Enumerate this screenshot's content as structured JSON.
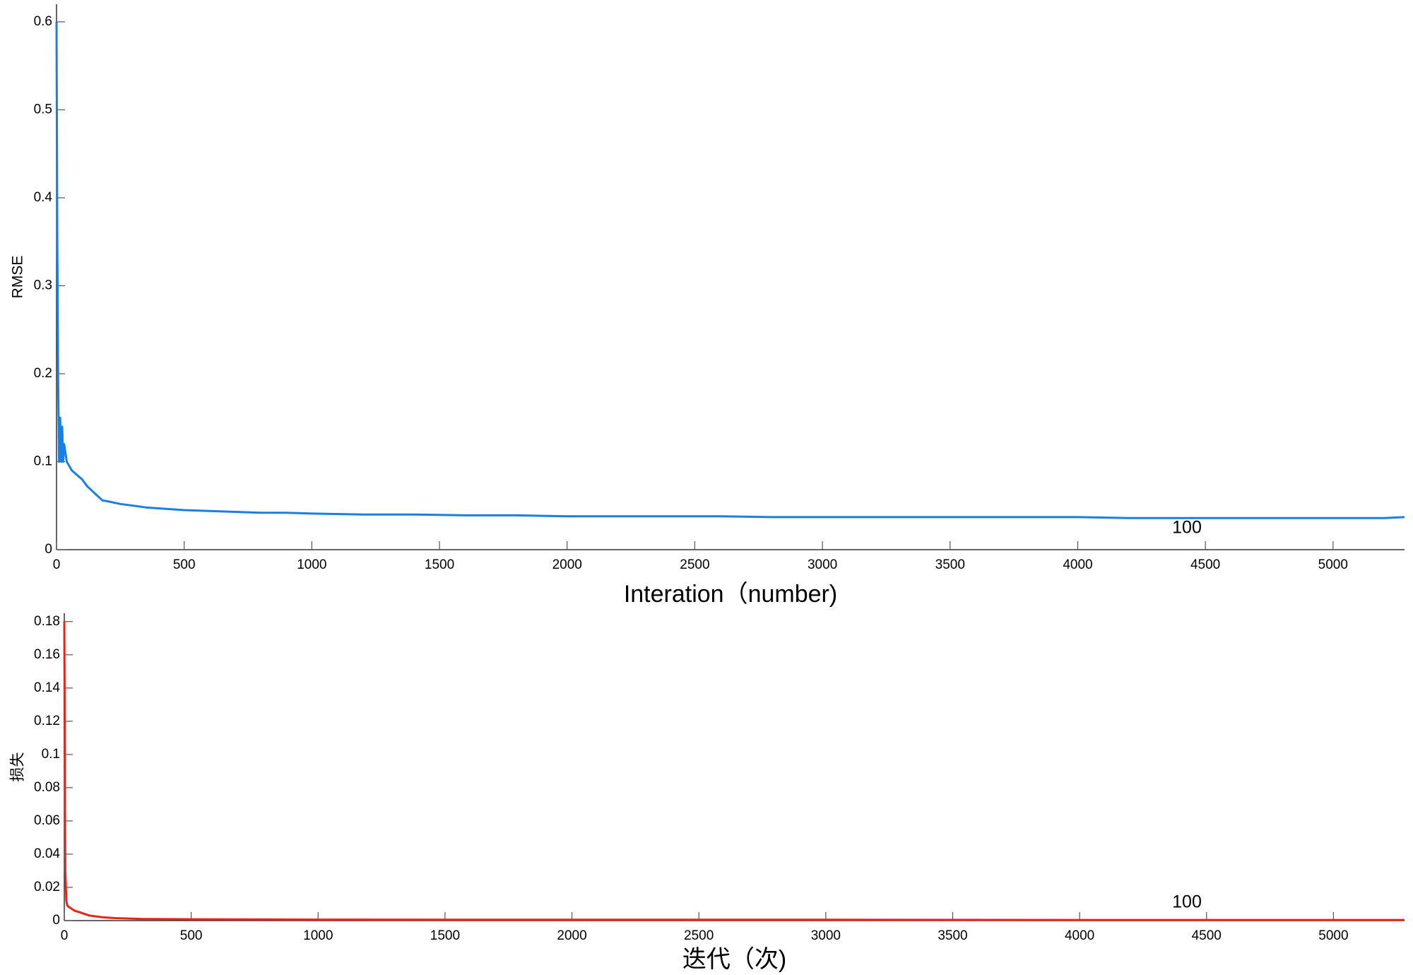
{
  "chart_data": [
    {
      "type": "line",
      "x_label": "Interation（number)",
      "y_label": "RMSE",
      "annotation": "100",
      "xlim": [
        0,
        5280
      ],
      "ylim": [
        0,
        0.62
      ],
      "xticks": [
        0,
        500,
        1000,
        1500,
        2000,
        2500,
        3000,
        3500,
        4000,
        4500,
        5000
      ],
      "yticks": [
        0,
        0.1,
        0.2,
        0.3,
        0.4,
        0.5,
        0.6
      ],
      "series": [
        {
          "color": "#1a7fe0",
          "x": [
            0,
            3,
            6,
            10,
            14,
            18,
            22,
            26,
            30,
            40,
            50,
            60,
            80,
            100,
            120,
            150,
            180,
            200,
            250,
            300,
            350,
            400,
            450,
            500,
            600,
            700,
            800,
            900,
            1000,
            1200,
            1400,
            1600,
            1800,
            2000,
            2200,
            2400,
            2600,
            2800,
            3000,
            3200,
            3400,
            3600,
            3800,
            4000,
            4200,
            4400,
            4600,
            4800,
            5000,
            5200,
            5280
          ],
          "values": [
            0.6,
            0.35,
            0.2,
            0.1,
            0.15,
            0.1,
            0.14,
            0.1,
            0.12,
            0.1,
            0.095,
            0.09,
            0.085,
            0.08,
            0.072,
            0.064,
            0.056,
            0.055,
            0.052,
            0.05,
            0.048,
            0.047,
            0.046,
            0.045,
            0.044,
            0.043,
            0.042,
            0.042,
            0.041,
            0.04,
            0.04,
            0.039,
            0.039,
            0.038,
            0.038,
            0.038,
            0.038,
            0.037,
            0.037,
            0.037,
            0.037,
            0.037,
            0.037,
            0.037,
            0.036,
            0.036,
            0.036,
            0.036,
            0.036,
            0.036,
            0.037
          ]
        }
      ]
    },
    {
      "type": "line",
      "x_label": "迭代（次)",
      "y_label": "损失",
      "annotation": "100",
      "xlim": [
        0,
        5280
      ],
      "ylim": [
        0,
        0.185
      ],
      "xticks": [
        0,
        500,
        1000,
        1500,
        2000,
        2500,
        3000,
        3500,
        4000,
        4500,
        5000
      ],
      "yticks": [
        0,
        0.02,
        0.04,
        0.06,
        0.08,
        0.1,
        0.12,
        0.14,
        0.16,
        0.18
      ],
      "series": [
        {
          "color": "#e8231b",
          "x": [
            0,
            4,
            8,
            12,
            20,
            30,
            40,
            60,
            80,
            100,
            150,
            200,
            300,
            500,
            1000,
            2000,
            3000,
            4000,
            5000,
            5280
          ],
          "values": [
            0.18,
            0.03,
            0.012,
            0.009,
            0.008,
            0.007,
            0.006,
            0.005,
            0.004,
            0.003,
            0.002,
            0.0015,
            0.001,
            0.0008,
            0.0006,
            0.0005,
            0.0005,
            0.0004,
            0.0004,
            0.0004
          ]
        }
      ]
    }
  ]
}
